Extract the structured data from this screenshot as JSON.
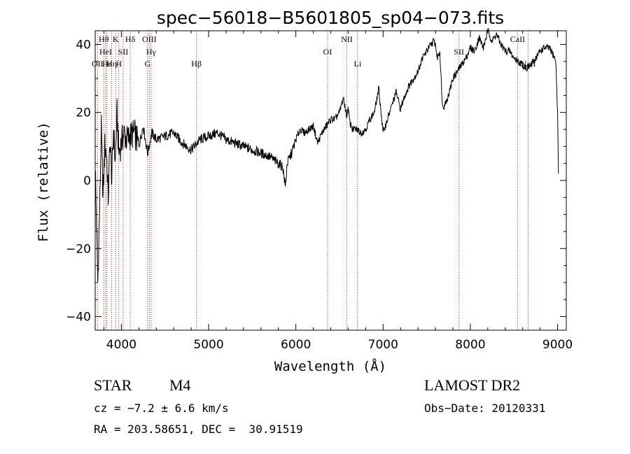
{
  "chart_data": {
    "type": "line",
    "title": "spec−56018−B5601805_sp04−073.fits",
    "xlabel": "Wavelength (Å)",
    "ylabel": "Flux (relative)",
    "xlim": [
      3700,
      9100
    ],
    "ylim": [
      -44,
      44
    ],
    "xticks": [
      4000,
      5000,
      6000,
      7000,
      8000,
      9000
    ],
    "xtick_labels": [
      "4000",
      "5000",
      "6000",
      "7000",
      "8000",
      "9000"
    ],
    "yticks": [
      -40,
      -20,
      0,
      20,
      40
    ],
    "ytick_labels": [
      "−40",
      "−20",
      "0",
      "20",
      "40"
    ],
    "grid": false,
    "series": [
      {
        "x": [
          3700,
          3730,
          3750,
          3770,
          3790,
          3810,
          3830,
          3850,
          3870,
          3890,
          3910,
          3930,
          3950,
          3970,
          3990,
          4010,
          4030,
          4060,
          4100,
          4150,
          4200,
          4250,
          4300,
          4350,
          4400,
          4500,
          4600,
          4700,
          4800,
          4900,
          5000,
          5100,
          5200,
          5300,
          5400,
          5500,
          5600,
          5700,
          5800,
          5850,
          5880,
          5900,
          5950,
          6000,
          6050,
          6100,
          6150,
          6200,
          6250,
          6300,
          6350,
          6400,
          6450,
          6500,
          6540,
          6563,
          6580,
          6600,
          6620,
          6650,
          6700,
          6750,
          6800,
          6850,
          6900,
          6950,
          7000,
          7050,
          7100,
          7150,
          7200,
          7250,
          7300,
          7350,
          7400,
          7450,
          7500,
          7550,
          7580,
          7600,
          7620,
          7650,
          7680,
          7700,
          7750,
          7800,
          7850,
          7900,
          7950,
          8000,
          8050,
          8100,
          8150,
          8200,
          8250,
          8300,
          8350,
          8400,
          8450,
          8500,
          8550,
          8600,
          8650,
          8700,
          8750,
          8800,
          8850,
          8900,
          8950,
          8980,
          9000,
          9010
        ],
        "y": [
          5,
          -30,
          -10,
          15,
          -5,
          10,
          8,
          -5,
          12,
          0,
          15,
          5,
          20,
          8,
          10,
          12,
          14,
          12,
          13,
          14,
          10,
          16,
          8,
          14,
          12,
          13,
          14,
          11,
          9,
          12,
          13,
          14,
          12,
          11,
          10,
          9,
          8,
          7,
          5,
          4,
          -2,
          5,
          8,
          12,
          15,
          14,
          15,
          16,
          11,
          14,
          16,
          18,
          18,
          20,
          24,
          22,
          19,
          21,
          17,
          15,
          15,
          14,
          15,
          18,
          20,
          27,
          14,
          18,
          22,
          26,
          21,
          25,
          28,
          30,
          32,
          36,
          38,
          40,
          41,
          40,
          36,
          38,
          22,
          22,
          25,
          30,
          32,
          34,
          36,
          39,
          38,
          42,
          39,
          44,
          41,
          43,
          40,
          38,
          38,
          36,
          35,
          34,
          33,
          34,
          36,
          38,
          39,
          39,
          37,
          35,
          20,
          2
        ]
      }
    ],
    "lines": [
      {
        "label": "OII",
        "x": 3727,
        "row": 3
      },
      {
        "label": "Hθ",
        "x": 3798,
        "row": 1
      },
      {
        "label": "HeI",
        "x": 3820,
        "row": 2
      },
      {
        "label": "Hε",
        "x": 3835,
        "row": 3
      },
      {
        "label": "Hη",
        "x": 3889,
        "row": 3
      },
      {
        "label": "K",
        "x": 3934,
        "row": 1
      },
      {
        "label": "H",
        "x": 3970,
        "row": 3
      },
      {
        "label": "SII",
        "x": 4020,
        "row": 2
      },
      {
        "label": "Hδ",
        "x": 4102,
        "row": 1
      },
      {
        "label": "OIII",
        "x": 4320,
        "row": 1
      },
      {
        "label": "G",
        "x": 4300,
        "row": 3
      },
      {
        "label": "Hγ",
        "x": 4341,
        "row": 2
      },
      {
        "label": "Hβ",
        "x": 4861,
        "row": 3
      },
      {
        "label": "OI",
        "x": 6364,
        "row": 2
      },
      {
        "label": "NII",
        "x": 6584,
        "row": 1
      },
      {
        "label": "Li",
        "x": 6708,
        "row": 3
      },
      {
        "label": "SII",
        "x": 7870,
        "row": 2
      },
      {
        "label": "CaII",
        "x": 8542,
        "row": 1
      },
      {
        "label": "NaII",
        "x": 8662,
        "row": 3
      }
    ]
  },
  "info": {
    "class": "STAR",
    "subclass": "M4",
    "survey": "LAMOST DR2",
    "cz": "cz = −7.2 ± 6.6 km/s",
    "obs_date": "Obs−Date: 20120331",
    "coords": "RA = 203.58651, DEC =  30.91519"
  }
}
